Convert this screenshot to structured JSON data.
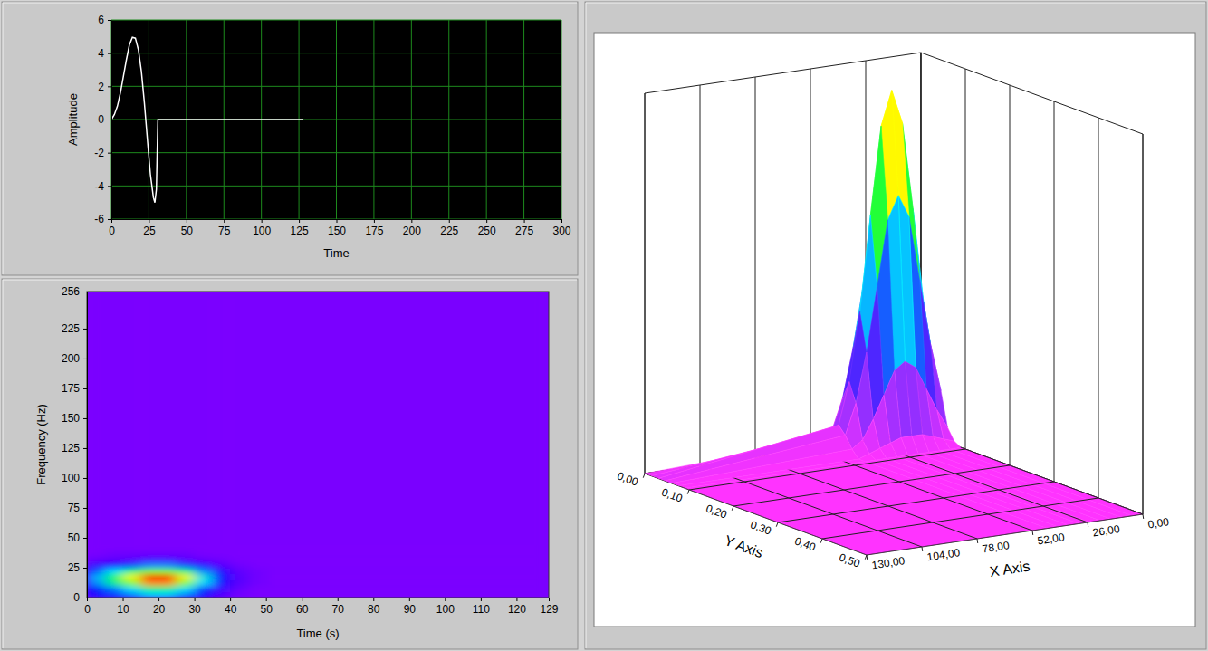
{
  "chart_data": [
    {
      "type": "line",
      "xlabel": "Time",
      "ylabel": "Amplitude",
      "x": [
        0,
        2,
        4,
        6,
        8,
        10,
        12,
        14,
        16,
        18,
        20,
        22,
        24,
        26,
        28,
        29,
        30,
        31,
        128
      ],
      "values": [
        0,
        0.3,
        0.8,
        1.6,
        2.6,
        3.6,
        4.5,
        4.95,
        4.9,
        4.2,
        2.9,
        1.0,
        -1.2,
        -3.3,
        -4.7,
        -5.0,
        -4.2,
        0,
        0
      ],
      "color": "#ffffff",
      "xlim": [
        0,
        300
      ],
      "xticks": [
        0,
        25,
        50,
        75,
        100,
        125,
        150,
        175,
        200,
        225,
        250,
        275,
        300
      ],
      "ylim": [
        -6,
        6
      ],
      "yticks": [
        -6,
        -4,
        -2,
        0,
        2,
        4,
        6
      ],
      "grid": true
    },
    {
      "type": "heatmap",
      "xlabel": "Time (s)",
      "ylabel": "Frequency (Hz)",
      "x_edges": [
        0,
        5,
        10,
        15,
        20,
        25,
        30,
        35,
        40,
        45,
        50,
        129
      ],
      "y_edges": [
        0,
        5,
        10,
        15,
        20,
        25,
        30,
        35,
        40,
        256
      ],
      "z": [
        [
          0.11,
          0.18,
          0.25,
          0.33,
          0.33,
          0.25,
          0.13,
          0.05,
          0.01,
          0,
          0
        ],
        [
          0.14,
          0.24,
          0.34,
          0.45,
          0.45,
          0.34,
          0.18,
          0.07,
          0.02,
          0,
          0
        ],
        [
          0.26,
          0.44,
          0.62,
          0.82,
          0.82,
          0.62,
          0.33,
          0.13,
          0.04,
          0.01,
          0
        ],
        [
          0.29,
          0.49,
          0.7,
          0.91,
          0.91,
          0.7,
          0.37,
          0.15,
          0.04,
          0.01,
          0
        ],
        [
          0.2,
          0.33,
          0.46,
          0.6,
          0.6,
          0.46,
          0.25,
          0.1,
          0.03,
          0.01,
          0
        ],
        [
          0.08,
          0.13,
          0.18,
          0.24,
          0.24,
          0.18,
          0.1,
          0.04,
          0.01,
          0,
          0
        ],
        [
          0.02,
          0.03,
          0.04,
          0.06,
          0.06,
          0.04,
          0.02,
          0.01,
          0,
          0,
          0
        ],
        [
          0,
          0.01,
          0.01,
          0.01,
          0.01,
          0.01,
          0,
          0,
          0,
          0,
          0
        ],
        [
          0,
          0,
          0,
          0,
          0,
          0,
          0,
          0,
          0,
          0,
          0
        ]
      ],
      "zlim": [
        0,
        0.95
      ],
      "xlim": [
        0,
        129
      ],
      "xticks": [
        0,
        10,
        20,
        30,
        40,
        50,
        60,
        70,
        80,
        90,
        100,
        110,
        120,
        129
      ],
      "ylim": [
        0,
        256
      ],
      "yticks": [
        0,
        25,
        50,
        75,
        100,
        125,
        150,
        175,
        200,
        225,
        256
      ]
    },
    {
      "type": "surface",
      "xlabel": "X Axis",
      "ylabel": "Y Axis",
      "x": [
        0,
        5,
        10,
        15,
        20,
        25,
        30,
        35,
        40,
        45,
        130
      ],
      "y": [
        0,
        0.015,
        0.03,
        0.045,
        0.06,
        0.075,
        0.09,
        0.5
      ],
      "z": [
        [
          0.04,
          0.09,
          0.15,
          0.21,
          0.23,
          0.21,
          0.15,
          0.09,
          0.04,
          0.02,
          0
        ],
        [
          0.13,
          0.26,
          0.43,
          0.6,
          0.66,
          0.6,
          0.43,
          0.26,
          0.13,
          0.05,
          0
        ],
        [
          0.18,
          0.36,
          0.61,
          0.84,
          0.93,
          0.84,
          0.61,
          0.36,
          0.18,
          0.07,
          0
        ],
        [
          0.13,
          0.26,
          0.43,
          0.6,
          0.66,
          0.6,
          0.43,
          0.26,
          0.13,
          0.05,
          0
        ],
        [
          0.04,
          0.09,
          0.15,
          0.21,
          0.23,
          0.21,
          0.15,
          0.09,
          0.04,
          0.02,
          0
        ],
        [
          0.01,
          0.02,
          0.03,
          0.04,
          0.04,
          0.04,
          0.03,
          0.02,
          0.01,
          0,
          0
        ],
        [
          0,
          0,
          0,
          0,
          0,
          0,
          0,
          0,
          0,
          0,
          0
        ],
        [
          0,
          0,
          0,
          0,
          0,
          0,
          0,
          0,
          0,
          0,
          0
        ]
      ],
      "xlim": [
        0,
        130
      ],
      "xticks": [
        {
          "value": 0,
          "label": "0,00"
        },
        {
          "value": 26,
          "label": "26,00"
        },
        {
          "value": 52,
          "label": "52,00"
        },
        {
          "value": 78,
          "label": "78,00"
        },
        {
          "value": 104,
          "label": "104,00"
        },
        {
          "value": 130,
          "label": "130,00"
        }
      ],
      "ylim": [
        0,
        0.5
      ],
      "yticks": [
        {
          "value": 0,
          "label": "0,00"
        },
        {
          "value": 0.1,
          "label": "0,10"
        },
        {
          "value": 0.2,
          "label": "0,20"
        },
        {
          "value": 0.3,
          "label": "0,30"
        },
        {
          "value": 0.4,
          "label": "0,40"
        },
        {
          "value": 0.5,
          "label": "0,50"
        }
      ],
      "zlim": [
        0,
        1
      ],
      "grid": true
    }
  ]
}
